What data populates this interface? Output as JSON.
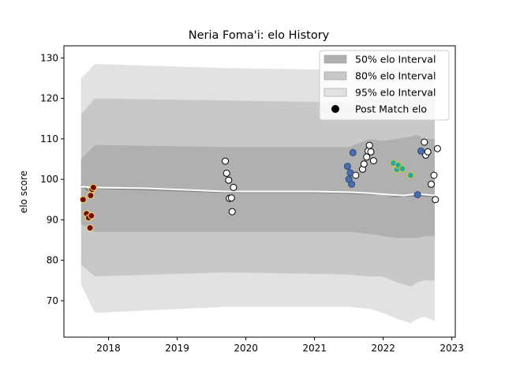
{
  "chart_data": {
    "type": "scatter",
    "title": "Neria Foma'i: elo History",
    "ylabel": "elo score",
    "xlabel": "",
    "xlim": [
      2017.35,
      2023.05
    ],
    "ylim": [
      61,
      133
    ],
    "x_ticks": [
      2018,
      2019,
      2020,
      2021,
      2022,
      2023
    ],
    "x_tick_labels": [
      "2018",
      "2019",
      "2020",
      "2021",
      "2022",
      "2023"
    ],
    "y_ticks": [
      70,
      80,
      90,
      100,
      110,
      120,
      130
    ],
    "y_tick_labels": [
      "70",
      "80",
      "90",
      "100",
      "110",
      "120",
      "130"
    ],
    "legend_position": "top-right",
    "legend": [
      {
        "label": "50% elo Interval",
        "color": "#b0b0b0",
        "kind": "band"
      },
      {
        "label": "80% elo Interval",
        "color": "#c8c8c8",
        "kind": "band"
      },
      {
        "label": "95% elo Interval",
        "color": "#e2e2e2",
        "kind": "band"
      },
      {
        "label": "Post Match elo",
        "color": "#000000",
        "kind": "marker"
      }
    ],
    "band_x": [
      2017.6,
      2017.8,
      2019.7,
      2021.5,
      2021.8,
      2022.0,
      2022.2,
      2022.4,
      2022.5,
      2022.6,
      2022.75
    ],
    "bands": {
      "p95": {
        "upper": [
          125,
          128.5,
          127.5,
          127,
          128,
          127,
          128.5,
          129,
          129.5,
          128.5,
          127
        ],
        "lower": [
          74,
          67,
          68.5,
          68.5,
          68,
          67,
          65.5,
          64.5,
          65.5,
          66,
          65
        ]
      },
      "p80": {
        "upper": [
          116,
          120,
          119.5,
          119,
          120,
          120,
          121,
          121,
          121.5,
          122,
          121
        ],
        "lower": [
          79,
          76,
          77,
          76.5,
          76,
          76,
          74.5,
          73.5,
          74.5,
          75,
          75
        ]
      },
      "p50": {
        "upper": [
          105,
          108.5,
          108,
          108,
          110,
          109.5,
          110,
          110.5,
          111,
          110,
          110
        ],
        "lower": [
          89,
          87,
          87,
          87,
          86.5,
          86,
          85.5,
          85.5,
          85.5,
          86,
          86
        ]
      }
    },
    "mean_line": {
      "x": [
        2017.6,
        2017.7,
        2017.8,
        2018.5,
        2019.7,
        2021.0,
        2021.5,
        2021.8,
        2022.0,
        2022.2,
        2022.5,
        2022.75
      ],
      "y": [
        98.5,
        97.3,
        97.8,
        97.5,
        96.8,
        96.8,
        96.6,
        96.4,
        96.3,
        95.8,
        96.0,
        95.8
      ]
    },
    "line_points": {
      "x": [
        2017.6,
        2017.75,
        2018.5,
        2019.7,
        2021.0,
        2021.55,
        2021.8,
        2022.1,
        2022.3,
        2022.5,
        2022.75
      ],
      "y": [
        98.2,
        98.0,
        97.8,
        97.0,
        97.0,
        96.8,
        96.6,
        96.2,
        96.0,
        96.4,
        96.0
      ]
    },
    "series": [
      {
        "marker": "dark-red-yellow-edge",
        "fill": "#7a0a0a",
        "edge": "#e8e060",
        "x": [
          2017.63,
          2017.68,
          2017.71,
          2017.73,
          2017.74,
          2017.75,
          2017.76,
          2017.78
        ],
        "y": [
          95,
          91.5,
          90.5,
          88,
          96,
          91,
          97.5,
          98
        ]
      },
      {
        "marker": "white-black-edge",
        "fill": "#ffffff",
        "edge": "#000000",
        "x": [
          2019.7,
          2019.72,
          2019.75,
          2019.76,
          2019.79,
          2019.8,
          2019.82,
          2021.6,
          2021.7,
          2021.72,
          2021.76,
          2021.78,
          2021.8,
          2021.82,
          2021.86,
          2022.6,
          2022.62,
          2022.65,
          2022.7,
          2022.74,
          2022.76,
          2022.79
        ],
        "y": [
          104.5,
          101.5,
          99.8,
          95.3,
          95.4,
          92,
          98,
          101,
          102.5,
          103.8,
          105.5,
          107,
          108.4,
          106.8,
          104.6,
          109.2,
          106,
          106.8,
          98.8,
          101,
          95,
          107.6
        ]
      },
      {
        "marker": "blue",
        "fill": "#4a6fae",
        "edge": "#2e4a7e",
        "x": [
          2021.48,
          2021.5,
          2021.52,
          2021.54,
          2021.56,
          2022.5,
          2022.55
        ],
        "y": [
          103.2,
          100,
          101.6,
          98.8,
          106.6,
          96.2,
          107
        ]
      },
      {
        "marker": "teal-yellow-edge",
        "fill": "#2aa7a0",
        "edge": "#d9d030",
        "x": [
          2022.15,
          2022.2,
          2022.22,
          2022.28,
          2022.4
        ],
        "y": [
          104,
          102.4,
          103.5,
          102.6,
          101
        ]
      }
    ]
  }
}
